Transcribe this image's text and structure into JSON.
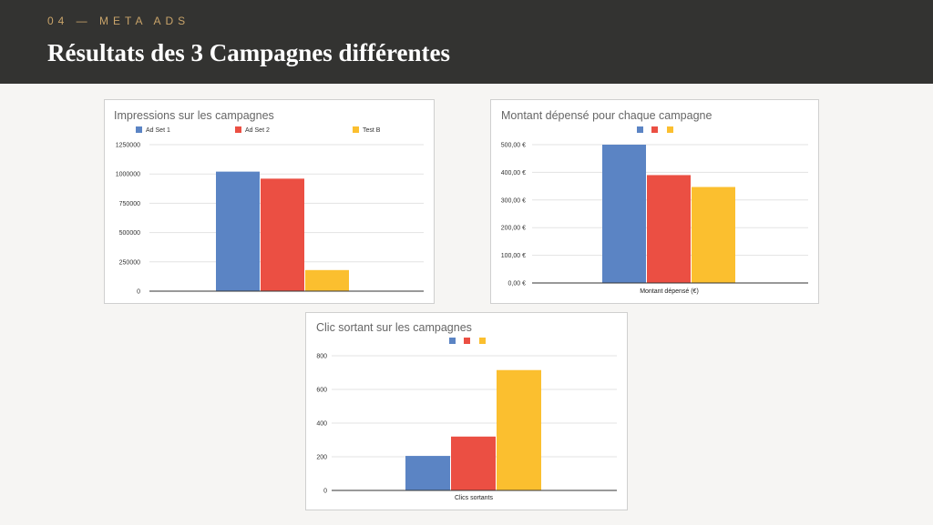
{
  "header": {
    "section_label": "04 — META ADS",
    "title": "Résultats des 3 Campagnes différentes"
  },
  "chart_data": [
    {
      "id": "impressions",
      "type": "bar",
      "title": "Impressions sur les campagnes",
      "xlabel": "",
      "ylabel": "",
      "legend": "top",
      "ylim": [
        0,
        1250000
      ],
      "yticks": [
        0,
        250000,
        500000,
        750000,
        1000000,
        1250000
      ],
      "ytick_labels": [
        "0",
        "250000",
        "500000",
        "750000",
        "1000000",
        "1250000"
      ],
      "grid": true,
      "series": [
        {
          "name": "Ad Set 1",
          "color": "#5b84c4",
          "values": [
            1020000
          ]
        },
        {
          "name": "Ad Set 2",
          "color": "#eb4f43",
          "values": [
            960000
          ]
        },
        {
          "name": "Test B",
          "color": "#fbbf2f",
          "values": [
            180000
          ]
        }
      ]
    },
    {
      "id": "spend",
      "type": "bar",
      "title": "Montant dépensé pour chaque campagne",
      "xlabel": "Montant dépensé (€)",
      "ylabel": "",
      "legend": "top",
      "ylim": [
        0,
        500
      ],
      "yticks": [
        0,
        100,
        200,
        300,
        400,
        500
      ],
      "ytick_labels": [
        "0,00 €",
        "100,00 €",
        "200,00 €",
        "300,00 €",
        "400,00 €",
        "500,00 €"
      ],
      "grid": true,
      "series": [
        {
          "color": "#5b84c4",
          "values": [
            500
          ]
        },
        {
          "color": "#eb4f43",
          "values": [
            390
          ]
        },
        {
          "color": "#fbbf2f",
          "values": [
            347
          ]
        }
      ]
    },
    {
      "id": "clicks",
      "type": "bar",
      "title": "Clic sortant sur les campagnes",
      "xlabel": "Clics sortants",
      "ylabel": "",
      "legend": "top",
      "ylim": [
        0,
        800
      ],
      "yticks": [
        0,
        200,
        400,
        600,
        800
      ],
      "ytick_labels": [
        "0",
        "200",
        "400",
        "600",
        "800"
      ],
      "grid": true,
      "series": [
        {
          "color": "#5b84c4",
          "values": [
            205
          ]
        },
        {
          "color": "#eb4f43",
          "values": [
            320
          ]
        },
        {
          "color": "#fbbf2f",
          "values": [
            715
          ]
        }
      ]
    }
  ]
}
